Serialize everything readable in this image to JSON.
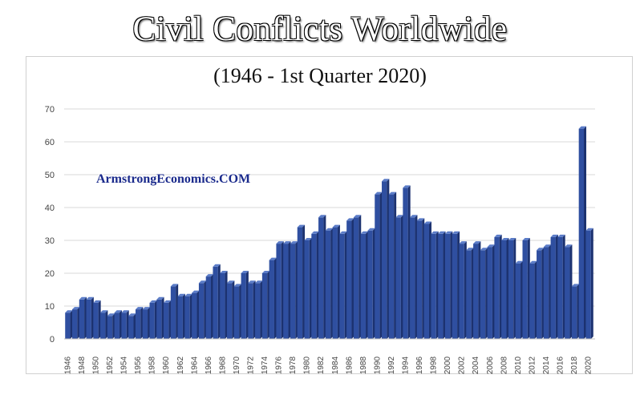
{
  "title": "Civil Conflicts Worldwide",
  "subtitle": "(1946 - 1st Quarter 2020)",
  "watermark": "ArmstrongEconomics.COM",
  "colors": {
    "bar": "#2f4fa0",
    "bar_dark": "#1c3270",
    "bar_light": "#5b7cc8",
    "grid": "#d9d9d9"
  },
  "chart_data": {
    "type": "bar",
    "title": "Civil Conflicts Worldwide",
    "subtitle": "(1946 - 1st Quarter 2020)",
    "xlabel": "",
    "ylabel": "",
    "ylim": [
      0,
      70
    ],
    "yticks": [
      0,
      10,
      20,
      30,
      40,
      50,
      60,
      70
    ],
    "grid": true,
    "categories": [
      "1946",
      "1947",
      "1948",
      "1949",
      "1950",
      "1951",
      "1952",
      "1953",
      "1954",
      "1955",
      "1956",
      "1957",
      "1958",
      "1959",
      "1960",
      "1961",
      "1962",
      "1963",
      "1964",
      "1965",
      "1966",
      "1967",
      "1968",
      "1969",
      "1970",
      "1971",
      "1972",
      "1973",
      "1974",
      "1975",
      "1976",
      "1977",
      "1978",
      "1979",
      "1980",
      "1981",
      "1982",
      "1983",
      "1984",
      "1985",
      "1986",
      "1987",
      "1988",
      "1989",
      "1990",
      "1991",
      "1992",
      "1993",
      "1994",
      "1995",
      "1996",
      "1997",
      "1998",
      "1999",
      "2000",
      "2001",
      "2002",
      "2003",
      "2004",
      "2005",
      "2006",
      "2007",
      "2008",
      "2009",
      "2010",
      "2011",
      "2012",
      "2013",
      "2014",
      "2015",
      "2016",
      "2017",
      "2018",
      "2019",
      "2020"
    ],
    "xtick_labels": [
      "1946",
      "1948",
      "1950",
      "1952",
      "1954",
      "1956",
      "1958",
      "1960",
      "1962",
      "1964",
      "1966",
      "1968",
      "1970",
      "1972",
      "1974",
      "1976",
      "1978",
      "1980",
      "1982",
      "1984",
      "1986",
      "1988",
      "1990",
      "1992",
      "1994",
      "1996",
      "1998",
      "2000",
      "2002",
      "2004",
      "2006",
      "2008",
      "2010",
      "2012",
      "2014",
      "2016",
      "2018",
      "2020"
    ],
    "values": [
      8,
      9,
      12,
      12,
      11,
      8,
      7,
      8,
      8,
      7,
      9,
      9,
      11,
      12,
      11,
      16,
      13,
      13,
      14,
      17,
      19,
      22,
      20,
      17,
      16,
      20,
      17,
      17,
      20,
      24,
      29,
      29,
      29,
      34,
      30,
      32,
      37,
      33,
      34,
      32,
      36,
      37,
      32,
      33,
      44,
      48,
      44,
      37,
      46,
      37,
      36,
      35,
      32,
      32,
      32,
      32,
      29,
      27,
      29,
      27,
      28,
      31,
      30,
      30,
      23,
      30,
      23,
      27,
      28,
      31,
      31,
      28,
      16,
      64,
      33
    ]
  }
}
